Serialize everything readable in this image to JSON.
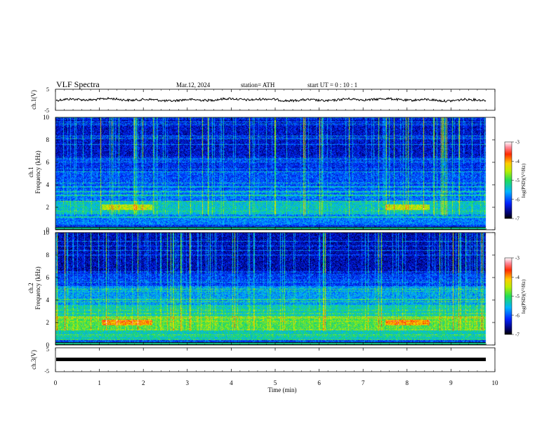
{
  "header": {
    "title": "VLF  Spectra",
    "date": "Mar.12, 2024",
    "station": "station= ATH",
    "start_ut": "start  UT  =    0  : 10 : 1"
  },
  "panels": {
    "ch1_wave_label": "ch.1(V)",
    "ch1_spec_label_1": "ch.1",
    "ch1_spec_label_2": "Frequency  (kHz)",
    "ch2_spec_label_1": "ch.2",
    "ch2_spec_label_2": "Frequency  (kHz)",
    "ch3_wave_label": "ch.3(V)",
    "colorbar_label": "log(PSD)(V²/Hz)"
  },
  "chart_data": {
    "type": "heatmap",
    "xlabel": "Time  (min)",
    "xlim": [
      0,
      10
    ],
    "x_ticks": [
      "0",
      "1",
      "2",
      "3",
      "4",
      "5",
      "6",
      "7",
      "8",
      "9",
      "10"
    ],
    "panels": [
      {
        "name": "ch.1(V)",
        "kind": "waveform",
        "ylim": [
          -5,
          5
        ],
        "y_ticks": [
          "5",
          "-5"
        ]
      },
      {
        "name": "ch.1",
        "kind": "spectrogram",
        "ylabel": "Frequency  (kHz)",
        "ylim": [
          0,
          10
        ],
        "y_ticks": [
          "10",
          "8",
          "6",
          "4",
          "2",
          "0"
        ],
        "colorbar": {
          "label": "log(PSD)(V²/Hz)",
          "range": [
            -7,
            -3
          ],
          "ticks": [
            "-3",
            "-4",
            "-5",
            "-6",
            "-7"
          ]
        }
      },
      {
        "name": "ch.2",
        "kind": "spectrogram",
        "ylabel": "Frequency  (kHz)",
        "ylim": [
          0,
          10
        ],
        "y_ticks": [
          "10",
          "8",
          "6",
          "4",
          "2",
          "0"
        ],
        "colorbar": {
          "label": "log(PSD)(V²/Hz)",
          "range": [
            -7,
            -3
          ],
          "ticks": [
            "-3",
            "-4",
            "-5",
            "-6",
            "-7"
          ]
        }
      },
      {
        "name": "ch.3(V)",
        "kind": "waveform",
        "ylim": [
          -5,
          5
        ],
        "y_ticks": [
          "5",
          "-5"
        ]
      }
    ],
    "data_end_min": 9.8,
    "colors": {
      "background": "#ffffff",
      "axis": "#000000",
      "trace": "#000000"
    }
  }
}
